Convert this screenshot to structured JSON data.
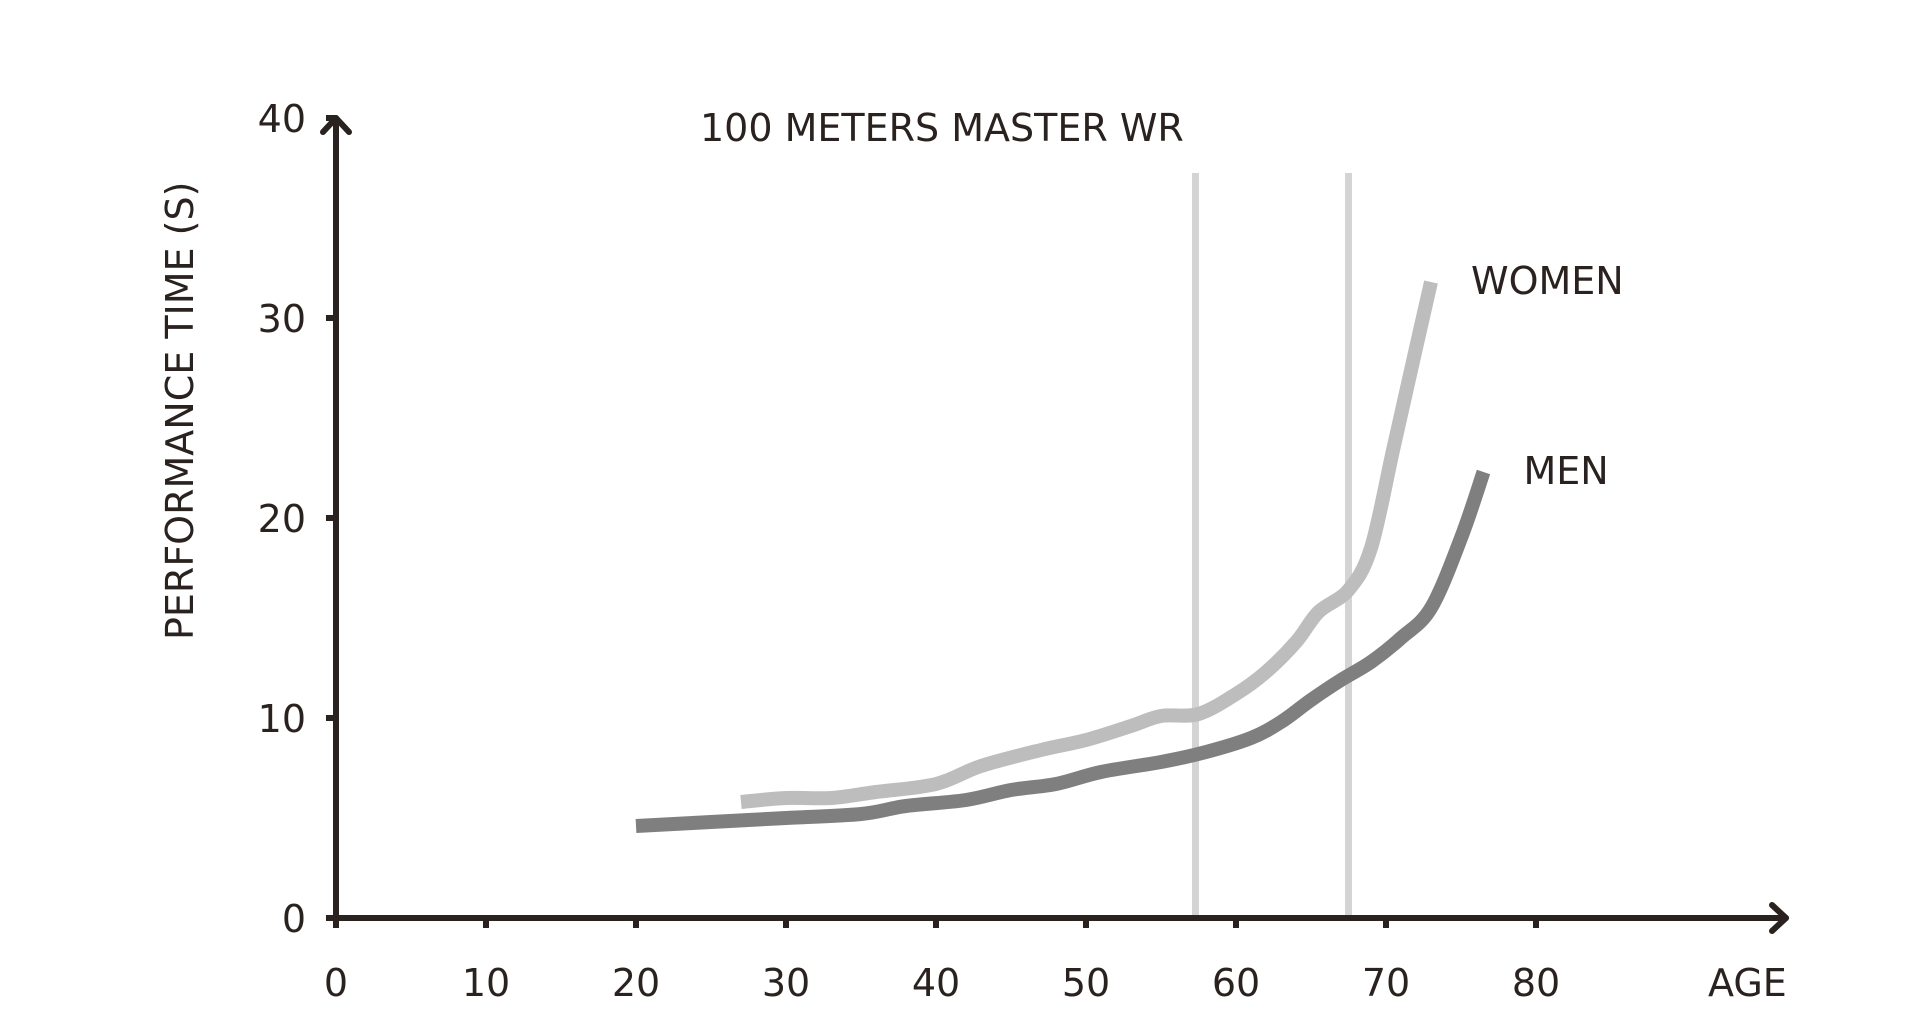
{
  "chart_data": {
    "type": "line",
    "title": "100 METERS MASTER WR",
    "xlabel": "AGE",
    "ylabel": "PERFORMANCE TIME (S)",
    "xlim": [
      0,
      97
    ],
    "ylim": [
      0,
      40
    ],
    "x_ticks": [
      0,
      10,
      20,
      30,
      40,
      50,
      60,
      70,
      80
    ],
    "y_ticks": [
      0,
      10,
      20,
      30,
      40
    ],
    "grid": false,
    "legend": "inline labels at line ends",
    "reference_lines_x": [
      57.3,
      67.5
    ],
    "series": [
      {
        "name": "WOMEN",
        "color": "#bdbdbd",
        "points": [
          [
            27,
            5.8
          ],
          [
            30,
            6.0
          ],
          [
            33,
            6.0
          ],
          [
            36,
            6.3
          ],
          [
            40,
            6.7
          ],
          [
            43,
            7.6
          ],
          [
            47,
            8.4
          ],
          [
            50,
            8.9
          ],
          [
            53,
            9.6
          ],
          [
            55,
            10.1
          ],
          [
            57.5,
            10.2
          ],
          [
            60,
            11.2
          ],
          [
            62,
            12.3
          ],
          [
            64,
            13.8
          ],
          [
            65.5,
            15.3
          ],
          [
            67.5,
            16.4
          ],
          [
            69,
            18.5
          ],
          [
            70.5,
            23.5
          ],
          [
            72,
            28.5
          ],
          [
            73,
            31.8
          ]
        ]
      },
      {
        "name": "MEN",
        "color": "#7f7f7f",
        "points": [
          [
            20,
            4.6
          ],
          [
            25,
            4.8
          ],
          [
            30,
            5.0
          ],
          [
            35,
            5.2
          ],
          [
            38,
            5.6
          ],
          [
            42,
            5.9
          ],
          [
            45,
            6.4
          ],
          [
            48,
            6.7
          ],
          [
            51,
            7.3
          ],
          [
            55,
            7.8
          ],
          [
            58,
            8.3
          ],
          [
            61,
            9.0
          ],
          [
            63,
            9.8
          ],
          [
            65,
            10.9
          ],
          [
            67,
            11.9
          ],
          [
            69,
            12.8
          ],
          [
            71,
            14.0
          ],
          [
            73,
            15.5
          ],
          [
            75,
            19.0
          ],
          [
            76.5,
            22.3
          ]
        ]
      }
    ]
  }
}
